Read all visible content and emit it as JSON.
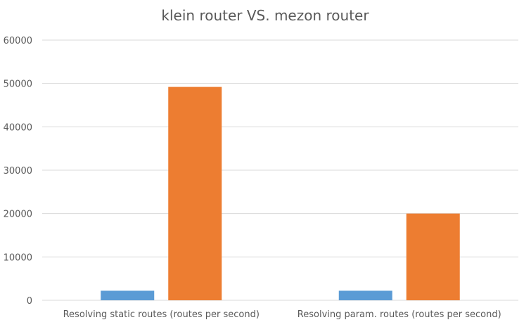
{
  "chart_data": {
    "type": "bar",
    "title": "klein router VS. mezon router",
    "xlabel": "",
    "ylabel": "",
    "categories": [
      "Resolving static routes (routes per second)",
      "Resolving param. routes (routes per second)"
    ],
    "series": [
      {
        "values": [
          2200,
          2200
        ],
        "color": "#5b9bd5"
      },
      {
        "values": [
          49200,
          20000
        ],
        "color": "#ed7d31"
      }
    ],
    "ylim": [
      0,
      60000
    ],
    "yticks": [
      "0",
      "10000",
      "20000",
      "30000",
      "40000",
      "50000",
      "60000"
    ],
    "grid": true,
    "legend": "none",
    "colors": {
      "grid": "#d9d9d9",
      "axis": "#d9d9d9",
      "text": "#595959"
    }
  }
}
